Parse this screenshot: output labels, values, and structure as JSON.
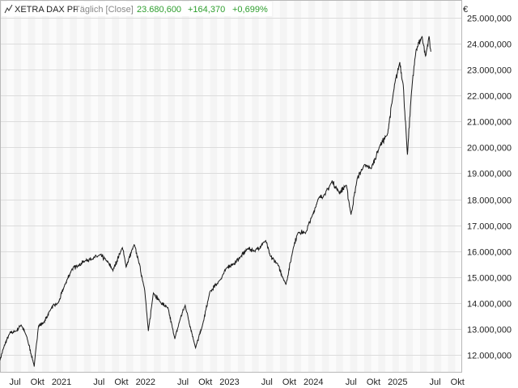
{
  "legend": {
    "name": "XETRA DAX PF",
    "interval": "Täglich [Close]",
    "last": "23.680,600",
    "change": "+164,370",
    "change_pct": "+0,699%",
    "color_up": "#2e9e2e"
  },
  "currency": "€",
  "chart_data": {
    "type": "line",
    "ylim": [
      11300,
      25700
    ],
    "y_ticks": [
      12000,
      13000,
      14000,
      15000,
      16000,
      17000,
      18000,
      19000,
      20000,
      21000,
      22000,
      23000,
      24000,
      25000
    ],
    "y_tick_labels": [
      "12.000,000",
      "13.000,000",
      "14.000,000",
      "15.000,000",
      "16.000,000",
      "17.000,000",
      "18.000,000",
      "19.000,000",
      "20.000,000",
      "21.000,000",
      "22.000,000",
      "23.000,000",
      "24.000,000",
      "25.000,000"
    ],
    "x_tick_labels": [
      "Jul",
      "Okt",
      "2021",
      "Jul",
      "Okt",
      "2022",
      "Jul",
      "Okt",
      "2023",
      "Jul",
      "Okt",
      "2024",
      "Jul",
      "Okt",
      "2025",
      "Jul",
      "Okt"
    ],
    "x_tick_dates": [
      "2020-07-01",
      "2020-10-01",
      "2021-01-01",
      "2021-07-01",
      "2021-10-01",
      "2022-01-01",
      "2022-07-01",
      "2022-10-01",
      "2023-01-01",
      "2023-07-01",
      "2023-10-01",
      "2024-01-01",
      "2024-07-01",
      "2024-10-01",
      "2025-01-01",
      "2025-07-01",
      "2025-10-01"
    ],
    "x_range": [
      "2020-06-01",
      "2025-12-01"
    ],
    "series_color": "#1a1a1a",
    "x": [
      "2020-06-01",
      "2020-06-20",
      "2020-07-15",
      "2020-08-10",
      "2020-09-01",
      "2020-09-25",
      "2020-10-28",
      "2020-11-15",
      "2020-12-10",
      "2021-01-10",
      "2021-02-10",
      "2021-03-10",
      "2021-04-10",
      "2021-05-10",
      "2021-06-10",
      "2021-07-10",
      "2021-08-10",
      "2021-09-10",
      "2021-10-05",
      "2021-11-15",
      "2021-12-01",
      "2022-01-05",
      "2022-01-25",
      "2022-02-20",
      "2022-03-08",
      "2022-03-30",
      "2022-05-01",
      "2022-06-01",
      "2022-07-01",
      "2022-07-25",
      "2022-08-15",
      "2022-09-29",
      "2022-10-30",
      "2022-11-30",
      "2023-01-15",
      "2023-02-15",
      "2023-03-15",
      "2023-04-15",
      "2023-05-15",
      "2023-06-15",
      "2023-07-31",
      "2023-08-20",
      "2023-09-20",
      "2023-10-27",
      "2023-11-30",
      "2023-12-20",
      "2024-01-20",
      "2024-02-20",
      "2024-03-15",
      "2024-04-15",
      "2024-05-15",
      "2024-06-15",
      "2024-07-15",
      "2024-08-05",
      "2024-09-01",
      "2024-09-30",
      "2024-11-01",
      "2024-12-10",
      "2025-01-10",
      "2025-02-10",
      "2025-03-05",
      "2025-03-20",
      "2025-04-07",
      "2025-04-25",
      "2025-05-15",
      "2025-06-10",
      "2025-06-25",
      "2025-07-10",
      "2025-07-18"
    ],
    "values": [
      11800,
      12350,
      12850,
      12900,
      13150,
      12700,
      11550,
      13100,
      13250,
      13800,
      14000,
      14700,
      15300,
      15450,
      15650,
      15700,
      15850,
      15600,
      15250,
      16150,
      15400,
      16250,
      15600,
      14500,
      12900,
      14400,
      14000,
      13800,
      12600,
      13400,
      13900,
      12250,
      13150,
      14400,
      14900,
      15400,
      15500,
      15800,
      16100,
      16000,
      16400,
      15800,
      15500,
      14700,
      16200,
      16750,
      16700,
      17400,
      18000,
      18200,
      18700,
      18250,
      18550,
      17400,
      18800,
      19300,
      19200,
      20100,
      20500,
      22400,
      23300,
      22400,
      19700,
      22200,
      23800,
      24300,
      23500,
      24300,
      23700
    ]
  }
}
